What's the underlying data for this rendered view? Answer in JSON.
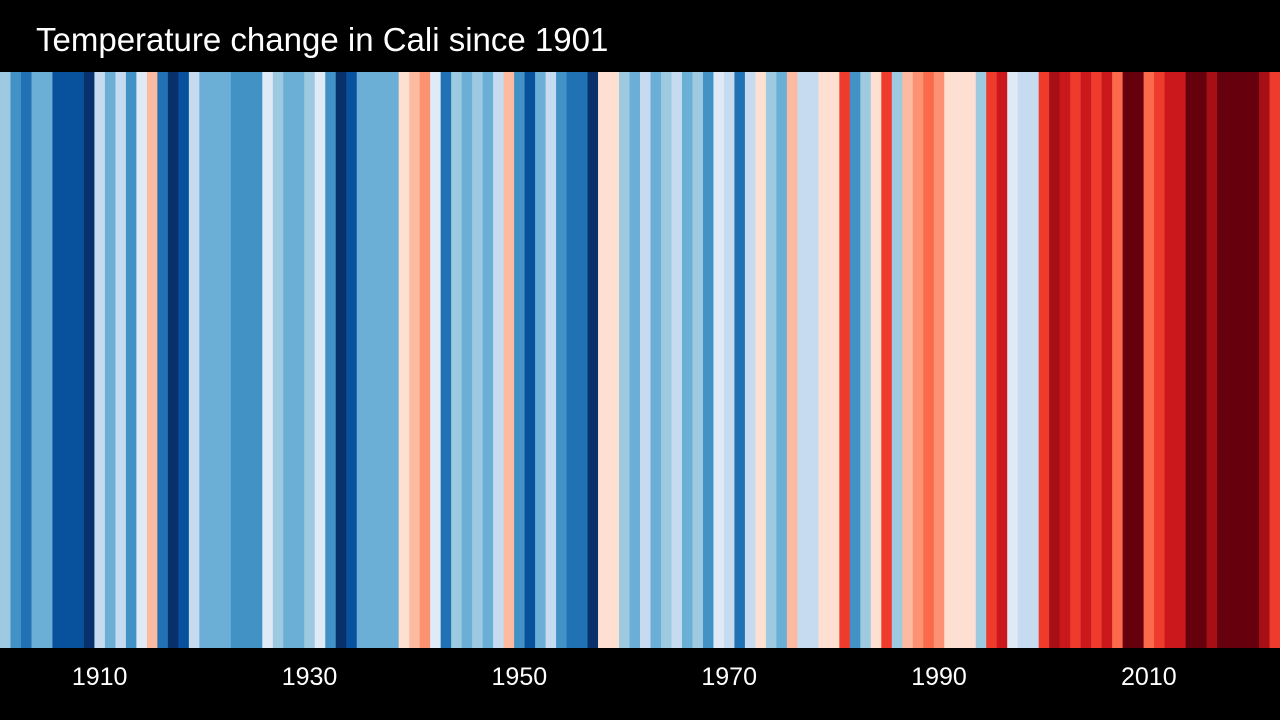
{
  "chart_data": {
    "type": "heatmap",
    "title": "Temperature change in Cali since 1901",
    "xlabel": "",
    "ylabel": "",
    "first_year": 1901,
    "last_year": 2022,
    "x_ticks": [
      1910,
      1930,
      1950,
      1970,
      1990,
      2010
    ],
    "colors": {
      "background": "#000000",
      "text": "#ffffff"
    },
    "stripes": [
      {
        "year": 1901,
        "color": "#9ecae1"
      },
      {
        "year": 1902,
        "color": "#4292c6"
      },
      {
        "year": 1903,
        "color": "#2171b5"
      },
      {
        "year": 1904,
        "color": "#6baed6"
      },
      {
        "year": 1905,
        "color": "#6baed6"
      },
      {
        "year": 1906,
        "color": "#08519c"
      },
      {
        "year": 1907,
        "color": "#08519c"
      },
      {
        "year": 1908,
        "color": "#08519c"
      },
      {
        "year": 1909,
        "color": "#08306b"
      },
      {
        "year": 1910,
        "color": "#c6dbef"
      },
      {
        "year": 1911,
        "color": "#6baed6"
      },
      {
        "year": 1912,
        "color": "#c6dbef"
      },
      {
        "year": 1913,
        "color": "#4292c6"
      },
      {
        "year": 1914,
        "color": "#deebf7"
      },
      {
        "year": 1915,
        "color": "#fcbba1"
      },
      {
        "year": 1916,
        "color": "#2171b5"
      },
      {
        "year": 1917,
        "color": "#08306b"
      },
      {
        "year": 1918,
        "color": "#08519c"
      },
      {
        "year": 1919,
        "color": "#c6dbef"
      },
      {
        "year": 1920,
        "color": "#6baed6"
      },
      {
        "year": 1921,
        "color": "#6baed6"
      },
      {
        "year": 1922,
        "color": "#6baed6"
      },
      {
        "year": 1923,
        "color": "#4292c6"
      },
      {
        "year": 1924,
        "color": "#4292c6"
      },
      {
        "year": 1925,
        "color": "#4292c6"
      },
      {
        "year": 1926,
        "color": "#deebf7"
      },
      {
        "year": 1927,
        "color": "#9ecae1"
      },
      {
        "year": 1928,
        "color": "#6baed6"
      },
      {
        "year": 1929,
        "color": "#6baed6"
      },
      {
        "year": 1930,
        "color": "#9ecae1"
      },
      {
        "year": 1931,
        "color": "#deebf7"
      },
      {
        "year": 1932,
        "color": "#4292c6"
      },
      {
        "year": 1933,
        "color": "#08306b"
      },
      {
        "year": 1934,
        "color": "#08519c"
      },
      {
        "year": 1935,
        "color": "#6baed6"
      },
      {
        "year": 1936,
        "color": "#6baed6"
      },
      {
        "year": 1937,
        "color": "#6baed6"
      },
      {
        "year": 1938,
        "color": "#6baed6"
      },
      {
        "year": 1939,
        "color": "#fee0d2"
      },
      {
        "year": 1940,
        "color": "#fcbba1"
      },
      {
        "year": 1941,
        "color": "#fc9272"
      },
      {
        "year": 1942,
        "color": "#deebf7"
      },
      {
        "year": 1943,
        "color": "#2171b5"
      },
      {
        "year": 1944,
        "color": "#9ecae1"
      },
      {
        "year": 1945,
        "color": "#6baed6"
      },
      {
        "year": 1946,
        "color": "#9ecae1"
      },
      {
        "year": 1947,
        "color": "#6baed6"
      },
      {
        "year": 1948,
        "color": "#c6dbef"
      },
      {
        "year": 1949,
        "color": "#fcbba1"
      },
      {
        "year": 1950,
        "color": "#4292c6"
      },
      {
        "year": 1951,
        "color": "#08519c"
      },
      {
        "year": 1952,
        "color": "#6baed6"
      },
      {
        "year": 1953,
        "color": "#c6dbef"
      },
      {
        "year": 1954,
        "color": "#4292c6"
      },
      {
        "year": 1955,
        "color": "#2171b5"
      },
      {
        "year": 1956,
        "color": "#2171b5"
      },
      {
        "year": 1957,
        "color": "#08306b"
      },
      {
        "year": 1958,
        "color": "#fee0d2"
      },
      {
        "year": 1959,
        "color": "#fee0d2"
      },
      {
        "year": 1960,
        "color": "#9ecae1"
      },
      {
        "year": 1961,
        "color": "#6baed6"
      },
      {
        "year": 1962,
        "color": "#c6dbef"
      },
      {
        "year": 1963,
        "color": "#6baed6"
      },
      {
        "year": 1964,
        "color": "#9ecae1"
      },
      {
        "year": 1965,
        "color": "#c6dbef"
      },
      {
        "year": 1966,
        "color": "#6baed6"
      },
      {
        "year": 1967,
        "color": "#9ecae1"
      },
      {
        "year": 1968,
        "color": "#4292c6"
      },
      {
        "year": 1969,
        "color": "#deebf7"
      },
      {
        "year": 1970,
        "color": "#c6dbef"
      },
      {
        "year": 1971,
        "color": "#2171b5"
      },
      {
        "year": 1972,
        "color": "#c6dbef"
      },
      {
        "year": 1973,
        "color": "#fee0d2"
      },
      {
        "year": 1974,
        "color": "#9ecae1"
      },
      {
        "year": 1975,
        "color": "#6baed6"
      },
      {
        "year": 1976,
        "color": "#fcbba1"
      },
      {
        "year": 1977,
        "color": "#c6dbef"
      },
      {
        "year": 1978,
        "color": "#c6dbef"
      },
      {
        "year": 1979,
        "color": "#fee0d2"
      },
      {
        "year": 1980,
        "color": "#fee0d2"
      },
      {
        "year": 1981,
        "color": "#ef3b2c"
      },
      {
        "year": 1982,
        "color": "#4292c6"
      },
      {
        "year": 1983,
        "color": "#9ecae1"
      },
      {
        "year": 1984,
        "color": "#fee0d2"
      },
      {
        "year": 1985,
        "color": "#ef3b2c"
      },
      {
        "year": 1986,
        "color": "#9ecae1"
      },
      {
        "year": 1987,
        "color": "#fcbba1"
      },
      {
        "year": 1988,
        "color": "#fc9272"
      },
      {
        "year": 1989,
        "color": "#fb6a4a"
      },
      {
        "year": 1990,
        "color": "#fc9272"
      },
      {
        "year": 1991,
        "color": "#fee0d2"
      },
      {
        "year": 1992,
        "color": "#fee0d2"
      },
      {
        "year": 1993,
        "color": "#fee0d2"
      },
      {
        "year": 1994,
        "color": "#9ecae1"
      },
      {
        "year": 1995,
        "color": "#ef3b2c"
      },
      {
        "year": 1996,
        "color": "#cb181d"
      },
      {
        "year": 1997,
        "color": "#deebf7"
      },
      {
        "year": 1998,
        "color": "#c6dbef"
      },
      {
        "year": 1999,
        "color": "#c6dbef"
      },
      {
        "year": 2000,
        "color": "#ef3b2c"
      },
      {
        "year": 2001,
        "color": "#a50f15"
      },
      {
        "year": 2002,
        "color": "#cb181d"
      },
      {
        "year": 2003,
        "color": "#ef3b2c"
      },
      {
        "year": 2004,
        "color": "#cb181d"
      },
      {
        "year": 2005,
        "color": "#ef3b2c"
      },
      {
        "year": 2006,
        "color": "#cb181d"
      },
      {
        "year": 2007,
        "color": "#fb6a4a"
      },
      {
        "year": 2008,
        "color": "#67000d"
      },
      {
        "year": 2009,
        "color": "#67000d"
      },
      {
        "year": 2010,
        "color": "#fb6a4a"
      },
      {
        "year": 2011,
        "color": "#ef3b2c"
      },
      {
        "year": 2012,
        "color": "#cb181d"
      },
      {
        "year": 2013,
        "color": "#cb181d"
      },
      {
        "year": 2014,
        "color": "#67000d"
      },
      {
        "year": 2015,
        "color": "#67000d"
      },
      {
        "year": 2016,
        "color": "#a50f15"
      },
      {
        "year": 2017,
        "color": "#67000d"
      },
      {
        "year": 2018,
        "color": "#67000d"
      },
      {
        "year": 2019,
        "color": "#67000d"
      },
      {
        "year": 2020,
        "color": "#67000d"
      },
      {
        "year": 2021,
        "color": "#a50f15"
      },
      {
        "year": 2022,
        "color": "#ef3b2c"
      }
    ]
  }
}
